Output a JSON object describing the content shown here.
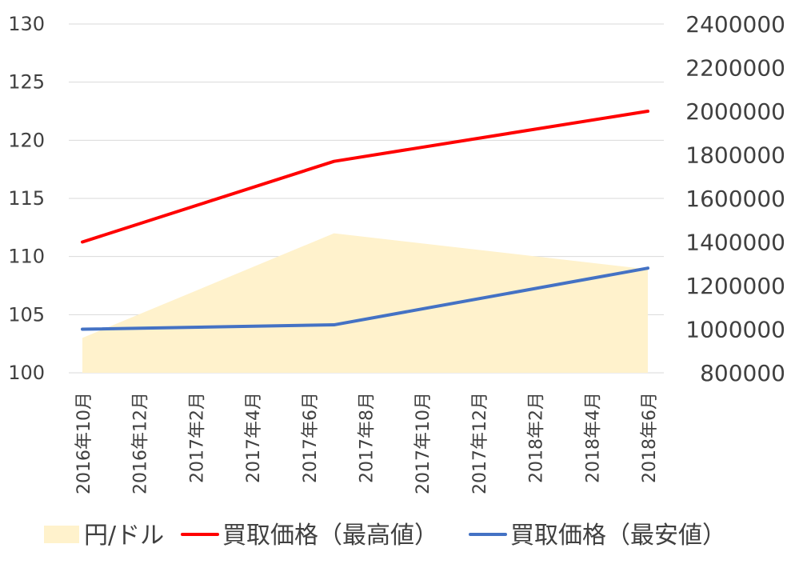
{
  "chart_data": {
    "type": "line",
    "title": "",
    "categories": [
      "2016年10月",
      "2016年12月",
      "2017年2月",
      "2017年4月",
      "2017年6月",
      "2017年8月",
      "2017年10月",
      "2017年12月",
      "2018年2月",
      "2018年4月",
      "2018年6月"
    ],
    "left_axis": {
      "ylim": [
        100,
        130
      ],
      "ticks": [
        "100",
        "105",
        "110",
        "115",
        "120",
        "125",
        "130"
      ]
    },
    "right_axis": {
      "ylim": [
        800000,
        2400000
      ],
      "ticks": [
        "800000",
        "1000000",
        "1200000",
        "1400000",
        "1600000",
        "1800000",
        "2000000",
        "2200000",
        "2400000"
      ]
    },
    "grid": true,
    "legend_position": "bottom",
    "series": [
      {
        "name": "円/ドル",
        "type": "area",
        "axis": "left",
        "color": "#FFF2CC",
        "points": [
          [
            0,
            103
          ],
          [
            4.45,
            112
          ],
          [
            10,
            108.9
          ]
        ]
      },
      {
        "name": "買取価格（最高値）",
        "type": "line",
        "axis": "right",
        "color": "#FF0000",
        "points": [
          [
            0,
            1400000
          ],
          [
            4.45,
            1770000
          ],
          [
            10,
            2000000
          ]
        ]
      },
      {
        "name": "買取価格（最安値）",
        "type": "line",
        "axis": "right",
        "color": "#4472C4",
        "points": [
          [
            0,
            1000000
          ],
          [
            4.45,
            1020000
          ],
          [
            10,
            1280000
          ]
        ]
      }
    ]
  }
}
